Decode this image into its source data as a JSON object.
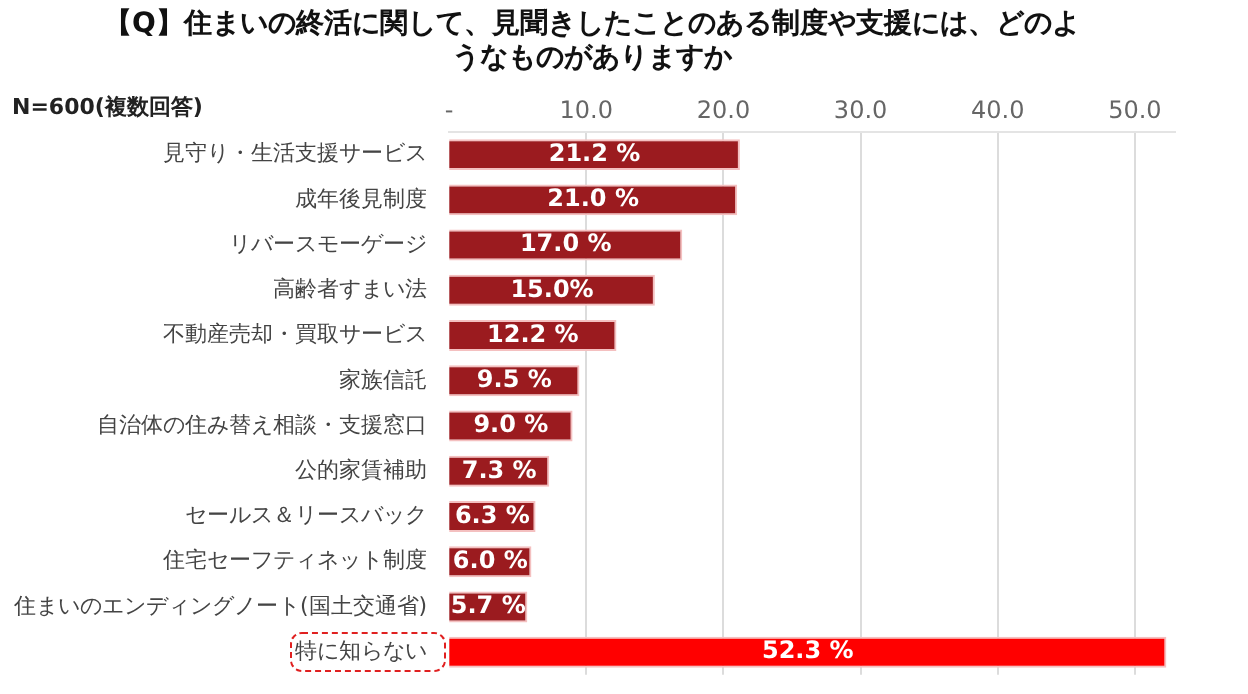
{
  "chart_data": {
    "type": "bar",
    "orientation": "horizontal",
    "title": "【Q】住まいの終活に関して、見聞きしたことのある制度や支援には、どのようなものがありますか",
    "annotations": [
      "N=600(複数回答)"
    ],
    "categories": [
      "見守り・生活支援サービス",
      "成年後見制度",
      "リバースモーゲージ",
      "高齢者すまい法",
      "不動産売却・買取サービス",
      "家族信託",
      "自治体の住み替え相談・支援窓口",
      "公的家賃補助",
      "セールス＆リースバック",
      "住宅セーフティネット制度",
      "住まいのエンディングノート(国土交通省)",
      "特に知らない"
    ],
    "values": [
      21.2,
      21.0,
      17.0,
      15.0,
      12.2,
      9.5,
      9.0,
      7.3,
      6.3,
      6.0,
      5.7,
      52.3
    ],
    "value_labels": [
      "21.2 %",
      "21.0 %",
      "17.0 %",
      "15.0%",
      "12.2 %",
      "9.5 %",
      "9.0 %",
      "7.3 %",
      "6.3 %",
      "6.0 %",
      "5.7 %",
      "52.3 %"
    ],
    "colors": [
      "#9b1b1f",
      "#9b1b1f",
      "#9b1b1f",
      "#9b1b1f",
      "#9b1b1f",
      "#9b1b1f",
      "#9b1b1f",
      "#9b1b1f",
      "#9b1b1f",
      "#9b1b1f",
      "#9b1b1f",
      "#ff0000"
    ],
    "xlim": [
      0,
      53
    ],
    "xticks": [
      {
        "value": 0,
        "label": "-"
      },
      {
        "value": 10,
        "label": "10.0"
      },
      {
        "value": 20,
        "label": "20.0"
      },
      {
        "value": 30,
        "label": "30.0"
      },
      {
        "value": 40,
        "label": "40.0"
      },
      {
        "value": 50,
        "label": "50.0"
      }
    ],
    "grid": "x",
    "legend": false
  }
}
